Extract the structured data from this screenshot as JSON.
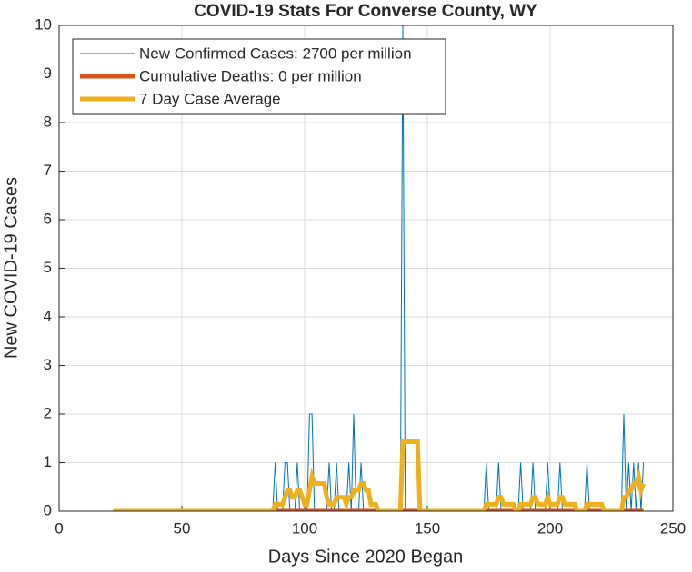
{
  "chart_data": {
    "type": "line",
    "title": "COVID-19 Stats For Converse County, WY",
    "xlabel": "Days Since 2020 Began",
    "ylabel": "New COVID-19 Cases",
    "xlim": [
      0,
      250
    ],
    "xticks": [
      0,
      50,
      100,
      150,
      200,
      250
    ],
    "ylim": [
      0,
      10
    ],
    "yticks": [
      0,
      1,
      2,
      3,
      4,
      5,
      6,
      7,
      8,
      9,
      10
    ],
    "grid": true,
    "legend": "upper left",
    "series": [
      {
        "name": "New Confirmed Cases: 2700 per million",
        "color": "#0072BD",
        "width": 1,
        "x": [
          22,
          87,
          88,
          89,
          91,
          92,
          93,
          94,
          96,
          97,
          98,
          101,
          102,
          103,
          104,
          109,
          110,
          111,
          112,
          113,
          114,
          117,
          118,
          119,
          120,
          121,
          122,
          123,
          124,
          139,
          140,
          141,
          173,
          174,
          175,
          178,
          179,
          180,
          187,
          188,
          189,
          192,
          193,
          194,
          198,
          199,
          200,
          203,
          204,
          205,
          214,
          215,
          216,
          229,
          230,
          231,
          232,
          233,
          234,
          235,
          236,
          237,
          238
        ],
        "values": [
          0,
          0,
          1,
          0,
          0,
          1,
          1,
          0,
          0,
          1,
          0,
          0,
          2,
          2,
          0,
          0,
          1,
          0,
          0,
          1,
          0,
          0,
          1,
          0,
          2,
          0,
          0,
          1,
          0,
          0,
          10,
          0,
          0,
          1,
          0,
          0,
          1,
          0,
          0,
          1,
          0,
          0,
          1,
          0,
          0,
          1,
          0,
          0,
          1,
          0,
          0,
          1,
          0,
          0,
          2,
          0,
          1,
          0,
          1,
          0,
          1,
          0,
          1
        ]
      },
      {
        "name": "Cumulative Deaths: 0 per million",
        "color": "#D95319",
        "width": 5,
        "x": [
          88,
          238
        ],
        "values": [
          0,
          0
        ]
      },
      {
        "name": "7 Day Case Average",
        "color": "#EDB120",
        "width": 5,
        "x": [
          22,
          87,
          88,
          89,
          90,
          91,
          92,
          93,
          94,
          95,
          96,
          97,
          98,
          99,
          100,
          101,
          102,
          103,
          104,
          105,
          106,
          107,
          108,
          109,
          110,
          111,
          112,
          113,
          114,
          115,
          116,
          117,
          118,
          119,
          120,
          121,
          122,
          123,
          124,
          125,
          126,
          127,
          128,
          129,
          130,
          139,
          140,
          146,
          147,
          173,
          174,
          175,
          176,
          177,
          178,
          179,
          180,
          181,
          182,
          183,
          184,
          185,
          186,
          187,
          188,
          189,
          190,
          191,
          192,
          193,
          194,
          195,
          196,
          197,
          198,
          199,
          200,
          201,
          202,
          203,
          204,
          205,
          206,
          207,
          208,
          209,
          210,
          211,
          214,
          215,
          221,
          222,
          229,
          230,
          231,
          232,
          233,
          234,
          235,
          236,
          237,
          238
        ],
        "values": [
          0,
          0,
          0.143,
          0.143,
          0.143,
          0.143,
          0.286,
          0.429,
          0.429,
          0.286,
          0.286,
          0.429,
          0.429,
          0.286,
          0.143,
          0.143,
          0.429,
          0.714,
          0.571,
          0.571,
          0.571,
          0.571,
          0.571,
          0.286,
          0.143,
          0.143,
          0.143,
          0.286,
          0.286,
          0.286,
          0.286,
          0.143,
          0.286,
          0.286,
          0.429,
          0.429,
          0.429,
          0.571,
          0.571,
          0.429,
          0.429,
          0.143,
          0.143,
          0.143,
          0,
          0,
          1.429,
          1.429,
          0,
          0,
          0.143,
          0.143,
          0.143,
          0.143,
          0.143,
          0.286,
          0.286,
          0.143,
          0.143,
          0.143,
          0.143,
          0.143,
          0,
          0,
          0.143,
          0.143,
          0.143,
          0.143,
          0.143,
          0.286,
          0.286,
          0.143,
          0.143,
          0.143,
          0.143,
          0.286,
          0.143,
          0.143,
          0.143,
          0.143,
          0.286,
          0.286,
          0.143,
          0.143,
          0.143,
          0.143,
          0.143,
          0,
          0,
          0.143,
          0.143,
          0,
          0,
          0.286,
          0.286,
          0.429,
          0.429,
          0.571,
          0.571,
          0.714,
          0.429,
          0.571
        ]
      }
    ]
  }
}
